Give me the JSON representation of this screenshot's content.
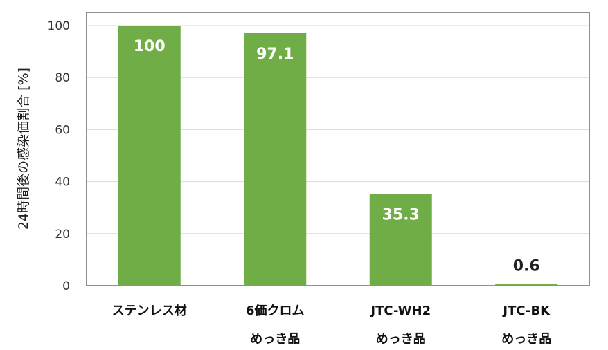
{
  "chart_data": {
    "type": "bar",
    "categories": [
      [
        "ステンレス材"
      ],
      [
        "6価クロム",
        "めっき品"
      ],
      [
        "JTC-WH2",
        "めっき品"
      ],
      [
        "JTC-BK",
        "めっき品"
      ]
    ],
    "values": [
      100,
      97.1,
      35.3,
      0.6
    ],
    "data_labels": [
      "100",
      "97.1",
      "35.3",
      "0.6"
    ],
    "ylabel": "24時間後の感染価割合 [%]",
    "ylim": [
      0,
      100
    ],
    "yticks": [
      0,
      20,
      40,
      60,
      80,
      100
    ],
    "grid": true,
    "legend": "none",
    "colors": {
      "bar": "#70AD47",
      "label_inside": "#ffffff",
      "label_outside": "#222222",
      "grid": "#d9d9d9",
      "axis": "#222222"
    }
  }
}
